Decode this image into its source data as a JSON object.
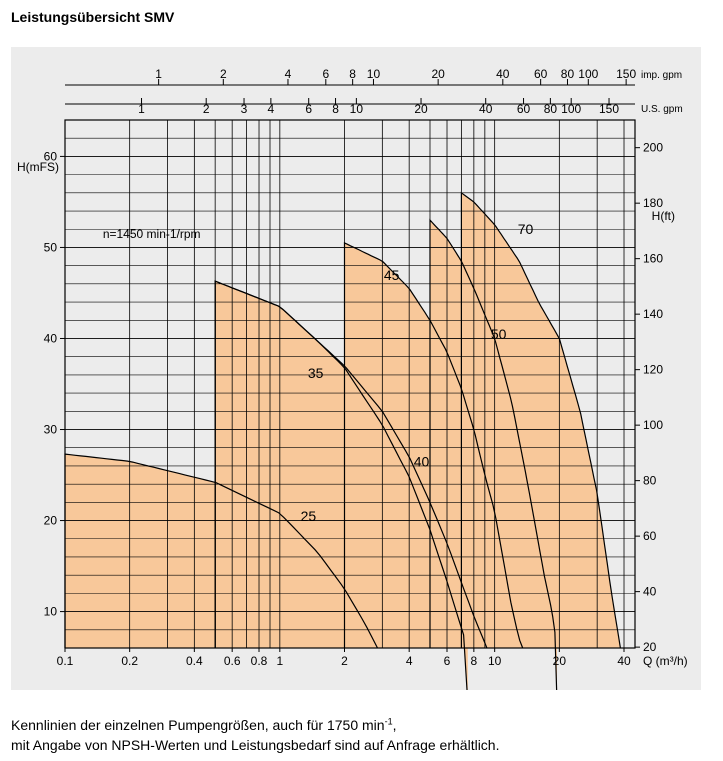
{
  "page": {
    "title": "Leistungsübersicht SMV",
    "caption_line1_pre": "Kennlinien der einzelnen Pumpengrößen, auch für 1750 min",
    "caption_line1_sup": "-1",
    "caption_line1_post": ",",
    "caption_line2": "mit Angabe von NPSH-Werten und Leistungsbedarf sind auf Anfrage erhältlich."
  },
  "chart_data": {
    "type": "area",
    "annotation": "n=1450  min-1/rpm",
    "fill_color": "#f8c89a",
    "line_color": "#000000",
    "grid": true,
    "x_axis": {
      "label": "Q (m³/h)",
      "scale": "log",
      "range": [
        0.1,
        45
      ],
      "ticks": [
        0.1,
        0.2,
        0.4,
        0.6,
        0.8,
        1,
        2,
        4,
        6,
        8,
        10,
        20,
        40
      ],
      "tick_labels": [
        "0.1",
        "0.2",
        "0.4",
        "0.6",
        "0.8",
        "1",
        "2",
        "4",
        "6",
        "8",
        "10",
        "20",
        "40"
      ]
    },
    "y_axis_left": {
      "label": "H(mFS)",
      "range": [
        6,
        64
      ],
      "ticks": [
        10,
        20,
        30,
        40,
        50,
        60
      ],
      "tick_labels": [
        "10",
        "20",
        "30",
        "40",
        "50",
        "60"
      ]
    },
    "y_axis_right": {
      "label": "H(ft)",
      "ticks": [
        20,
        40,
        60,
        80,
        100,
        120,
        140,
        160,
        180,
        200
      ],
      "tick_labels": [
        "20",
        "40",
        "60",
        "80",
        "100",
        "120",
        "140",
        "160",
        "180",
        "200"
      ]
    },
    "top_axis_us": {
      "label": "U.S. gpm",
      "ticks": [
        1,
        2,
        3,
        4,
        6,
        8,
        10,
        20,
        40,
        60,
        80,
        100,
        150
      ],
      "tick_labels": [
        "1",
        "2",
        "3",
        "4",
        "6",
        "8",
        "10",
        "20",
        "40",
        "60",
        "80",
        "100",
        "150"
      ]
    },
    "top_axis_imp": {
      "label": "imp. gpm",
      "ticks": [
        1,
        2,
        4,
        6,
        8,
        10,
        20,
        40,
        60,
        80,
        100,
        150
      ],
      "tick_labels": [
        "1",
        "2",
        "4",
        "6",
        "8",
        "10",
        "20",
        "40",
        "60",
        "80",
        "100",
        "150"
      ]
    },
    "series": [
      {
        "name": "25",
        "q_min": 0.1,
        "h_at_min": 27.3,
        "points": [
          [
            0.1,
            27.3
          ],
          [
            0.2,
            26.5
          ],
          [
            0.5,
            24.2
          ],
          [
            1.0,
            20.8
          ],
          [
            1.5,
            16.5
          ],
          [
            2.0,
            12.5
          ],
          [
            2.5,
            8.6
          ],
          [
            2.85,
            6.0
          ]
        ]
      },
      {
        "name": "35",
        "q_min": 0.5,
        "h_at_min": 46.3,
        "points": [
          [
            0.5,
            46.3
          ],
          [
            1.0,
            43.5
          ],
          [
            1.5,
            39.7
          ],
          [
            2.0,
            36.8
          ],
          [
            3.0,
            30.5
          ],
          [
            4.0,
            24.8
          ],
          [
            5.0,
            19.0
          ],
          [
            6.0,
            13.3
          ],
          [
            7.0,
            8.2
          ],
          [
            7.5,
            6.0
          ]
        ]
      },
      {
        "name": "40",
        "q_min": 0.5,
        "h_at_min": 46.3,
        "points": [
          [
            0.5,
            46.3
          ],
          [
            1.0,
            43.5
          ],
          [
            1.5,
            39.7
          ],
          [
            2.0,
            37.0
          ],
          [
            3.0,
            32.0
          ],
          [
            4.0,
            27.0
          ],
          [
            5.0,
            22.0
          ],
          [
            6.0,
            17.5
          ],
          [
            7.0,
            13.2
          ],
          [
            8.0,
            9.5
          ],
          [
            9.2,
            6.0
          ]
        ]
      },
      {
        "name": "45",
        "q_min": 2.0,
        "h_at_min": 50.5,
        "points": [
          [
            2.0,
            50.5
          ],
          [
            3.0,
            48.5
          ],
          [
            4.0,
            45.5
          ],
          [
            5.0,
            42.0
          ],
          [
            6.0,
            38.5
          ],
          [
            7.0,
            34.5
          ],
          [
            8.0,
            30.0
          ],
          [
            9.0,
            25.0
          ],
          [
            10.0,
            21.0
          ],
          [
            11.0,
            15.5
          ],
          [
            12.0,
            10.5
          ],
          [
            13.0,
            7.0
          ],
          [
            13.5,
            6.0
          ]
        ]
      },
      {
        "name": "50",
        "q_min": 5.0,
        "h_at_min": 53.0,
        "points": [
          [
            5.0,
            53.0
          ],
          [
            6.0,
            51.0
          ],
          [
            7.0,
            48.5
          ],
          [
            8.0,
            45.5
          ],
          [
            10.0,
            40.0
          ],
          [
            12.0,
            33.0
          ],
          [
            14.0,
            25.0
          ],
          [
            16.0,
            17.5
          ],
          [
            17.0,
            14.0
          ],
          [
            18.5,
            10.0
          ],
          [
            19.5,
            6.0
          ]
        ]
      },
      {
        "name": "70",
        "q_min": 7.0,
        "h_at_min": 56.0,
        "points": [
          [
            7.0,
            56.0
          ],
          [
            8.0,
            55.0
          ],
          [
            10.0,
            52.5
          ],
          [
            13.0,
            48.5
          ],
          [
            16.0,
            44.0
          ],
          [
            20.0,
            40.0
          ],
          [
            25.0,
            32.0
          ],
          [
            30.0,
            23.0
          ],
          [
            35.0,
            12.0
          ],
          [
            38.5,
            6.0
          ]
        ]
      }
    ]
  }
}
